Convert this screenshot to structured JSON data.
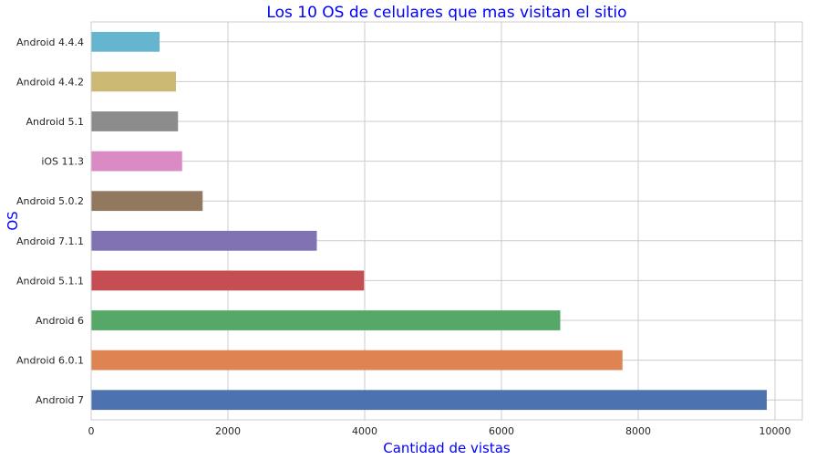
{
  "chart_data": {
    "type": "bar",
    "orientation": "horizontal",
    "title": "Los 10 OS de celulares que mas visitan el sitio",
    "xlabel": "Cantidad de vistas",
    "ylabel": "OS",
    "categories": [
      "Android 7",
      "Android 6.0.1",
      "Android 6",
      "Android 5.1.1",
      "Android 7.1.1",
      "Android 5.0.2",
      "iOS 11.3",
      "Android 5.1",
      "Android 4.4.2",
      "Android 4.4.4"
    ],
    "values": [
      9880,
      7770,
      6860,
      3990,
      3300,
      1630,
      1330,
      1270,
      1240,
      1000
    ],
    "colors": [
      "#4c72b0",
      "#dd8452",
      "#55a868",
      "#c44e52",
      "#8172b3",
      "#937860",
      "#da8bc3",
      "#8c8c8c",
      "#ccb974",
      "#64b5cd"
    ],
    "xlim": [
      0,
      10400
    ],
    "xticks": [
      0,
      2000,
      4000,
      6000,
      8000,
      10000
    ],
    "grid": true,
    "title_color": "#0000ff",
    "label_color": "#0000ff",
    "grid_color": "#cccccc"
  }
}
